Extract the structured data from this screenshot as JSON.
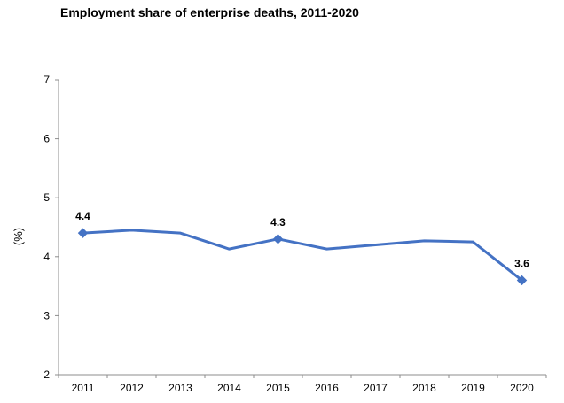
{
  "chart_data": {
    "type": "line",
    "title": "Employment share of enterprise deaths, 2011-2020",
    "xlabel": "",
    "ylabel": "(%)",
    "ylim": [
      2,
      7
    ],
    "yticks": [
      "2",
      "3",
      "4",
      "5",
      "6",
      "7"
    ],
    "categories": [
      "2011",
      "2012",
      "2013",
      "2014",
      "2015",
      "2016",
      "2017",
      "2018",
      "2019",
      "2020"
    ],
    "series": [
      {
        "values": [
          4.4,
          4.45,
          4.4,
          4.13,
          4.3,
          4.13,
          4.2,
          4.27,
          4.25,
          3.6
        ],
        "color": "#4472C4",
        "marker": "diamond"
      }
    ],
    "data_labels": [
      {
        "index": 0,
        "text": "4.4"
      },
      {
        "index": 4,
        "text": "4.3"
      },
      {
        "index": 9,
        "text": "3.6"
      }
    ],
    "grid": false,
    "legend": "none"
  }
}
